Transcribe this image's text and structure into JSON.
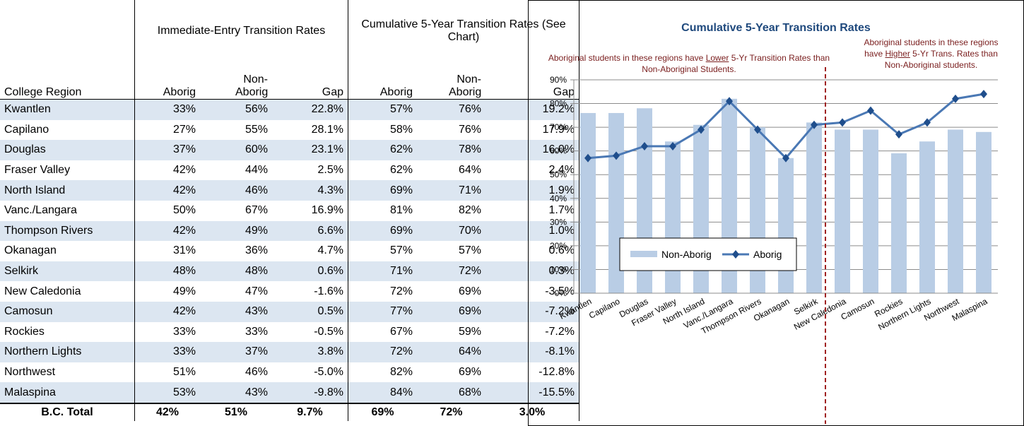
{
  "table": {
    "group_headers": [
      "Immediate-Entry Transition Rates",
      "Cumulative 5-Year Transition Rates (See Chart)"
    ],
    "column_headers": [
      "College Region",
      "Aborig",
      "Non-Aborig",
      "Gap",
      "Aborig",
      "Non-Aborig",
      "Gap"
    ],
    "rows": [
      [
        "Kwantlen",
        "33%",
        "56%",
        "22.8%",
        "57%",
        "76%",
        "19.2%"
      ],
      [
        "Capilano",
        "27%",
        "55%",
        "28.1%",
        "58%",
        "76%",
        "17.9%"
      ],
      [
        "Douglas",
        "37%",
        "60%",
        "23.1%",
        "62%",
        "78%",
        "16.0%"
      ],
      [
        "Fraser Valley",
        "42%",
        "44%",
        "2.5%",
        "62%",
        "64%",
        "2.4%"
      ],
      [
        "North Island",
        "42%",
        "46%",
        "4.3%",
        "69%",
        "71%",
        "1.9%"
      ],
      [
        "Vanc./Langara",
        "50%",
        "67%",
        "16.9%",
        "81%",
        "82%",
        "1.7%"
      ],
      [
        "Thompson Rivers",
        "42%",
        "49%",
        "6.6%",
        "69%",
        "70%",
        "1.0%"
      ],
      [
        "Okanagan",
        "31%",
        "36%",
        "4.7%",
        "57%",
        "57%",
        "0.6%"
      ],
      [
        "Selkirk",
        "48%",
        "48%",
        "0.6%",
        "71%",
        "72%",
        "0.3%"
      ],
      [
        "New Caledonia",
        "49%",
        "47%",
        "-1.6%",
        "72%",
        "69%",
        "-3.5%"
      ],
      [
        "Camosun",
        "42%",
        "43%",
        "0.5%",
        "77%",
        "69%",
        "-7.2%"
      ],
      [
        "Rockies",
        "33%",
        "33%",
        "-0.5%",
        "67%",
        "59%",
        "-7.2%"
      ],
      [
        "Northern Lights",
        "33%",
        "37%",
        "3.8%",
        "72%",
        "64%",
        "-8.1%"
      ],
      [
        "Northwest",
        "51%",
        "46%",
        "-5.0%",
        "82%",
        "69%",
        "-12.8%"
      ],
      [
        "Malaspina",
        "53%",
        "43%",
        "-9.8%",
        "84%",
        "68%",
        "-15.5%"
      ]
    ],
    "total_row": [
      "B.C. Total",
      "42%",
      "51%",
      "9.7%",
      "69%",
      "72%",
      "3.0%"
    ]
  },
  "chart_data": {
    "type": "bar_line",
    "title": "Cumulative 5-Year Transition Rates",
    "annotations": [
      [
        "Aboriginal students in these regions have ",
        "Lower",
        " 5-Yr Transition Rates  than Non-Aboriginal Students."
      ],
      [
        "Aboriginal students in these regions have ",
        "Higher",
        " 5-Yr Trans. Rates than Non-Aboriginal students."
      ]
    ],
    "categories": [
      "Kwantlen",
      "Capilano",
      "Douglas",
      "Fraser Valley",
      "North Island",
      "Vanc./Langara",
      "Thompson Rivers",
      "Okanagan",
      "Selkirk",
      "New Caledonia",
      "Camosun",
      "Rockies",
      "Northern Lights",
      "Northwest",
      "Malaspina"
    ],
    "series": [
      {
        "name": "Non-Aborig",
        "kind": "bar",
        "color": "#b9cde5",
        "values": [
          76,
          76,
          78,
          64,
          71,
          82,
          70,
          57,
          72,
          69,
          69,
          59,
          64,
          69,
          68
        ]
      },
      {
        "name": "Aborig",
        "kind": "line",
        "color": "#4a78b4",
        "values": [
          57,
          58,
          62,
          62,
          69,
          81,
          69,
          57,
          71,
          72,
          77,
          67,
          72,
          82,
          84
        ]
      }
    ],
    "ylim": [
      0,
      90
    ],
    "yticks": [
      {
        "value": 0,
        "label": "0%"
      },
      {
        "value": 10,
        "label": "10%"
      },
      {
        "value": 20,
        "label": "20%"
      },
      {
        "value": 30,
        "label": "30%"
      },
      {
        "value": 40,
        "label": "40%"
      },
      {
        "value": 50,
        "label": "50%"
      },
      {
        "value": 60,
        "label": "60%"
      },
      {
        "value": 70,
        "label": "70%"
      },
      {
        "value": 80,
        "label": "80%"
      },
      {
        "value": 90,
        "label": "90%"
      }
    ],
    "grid": true
  }
}
